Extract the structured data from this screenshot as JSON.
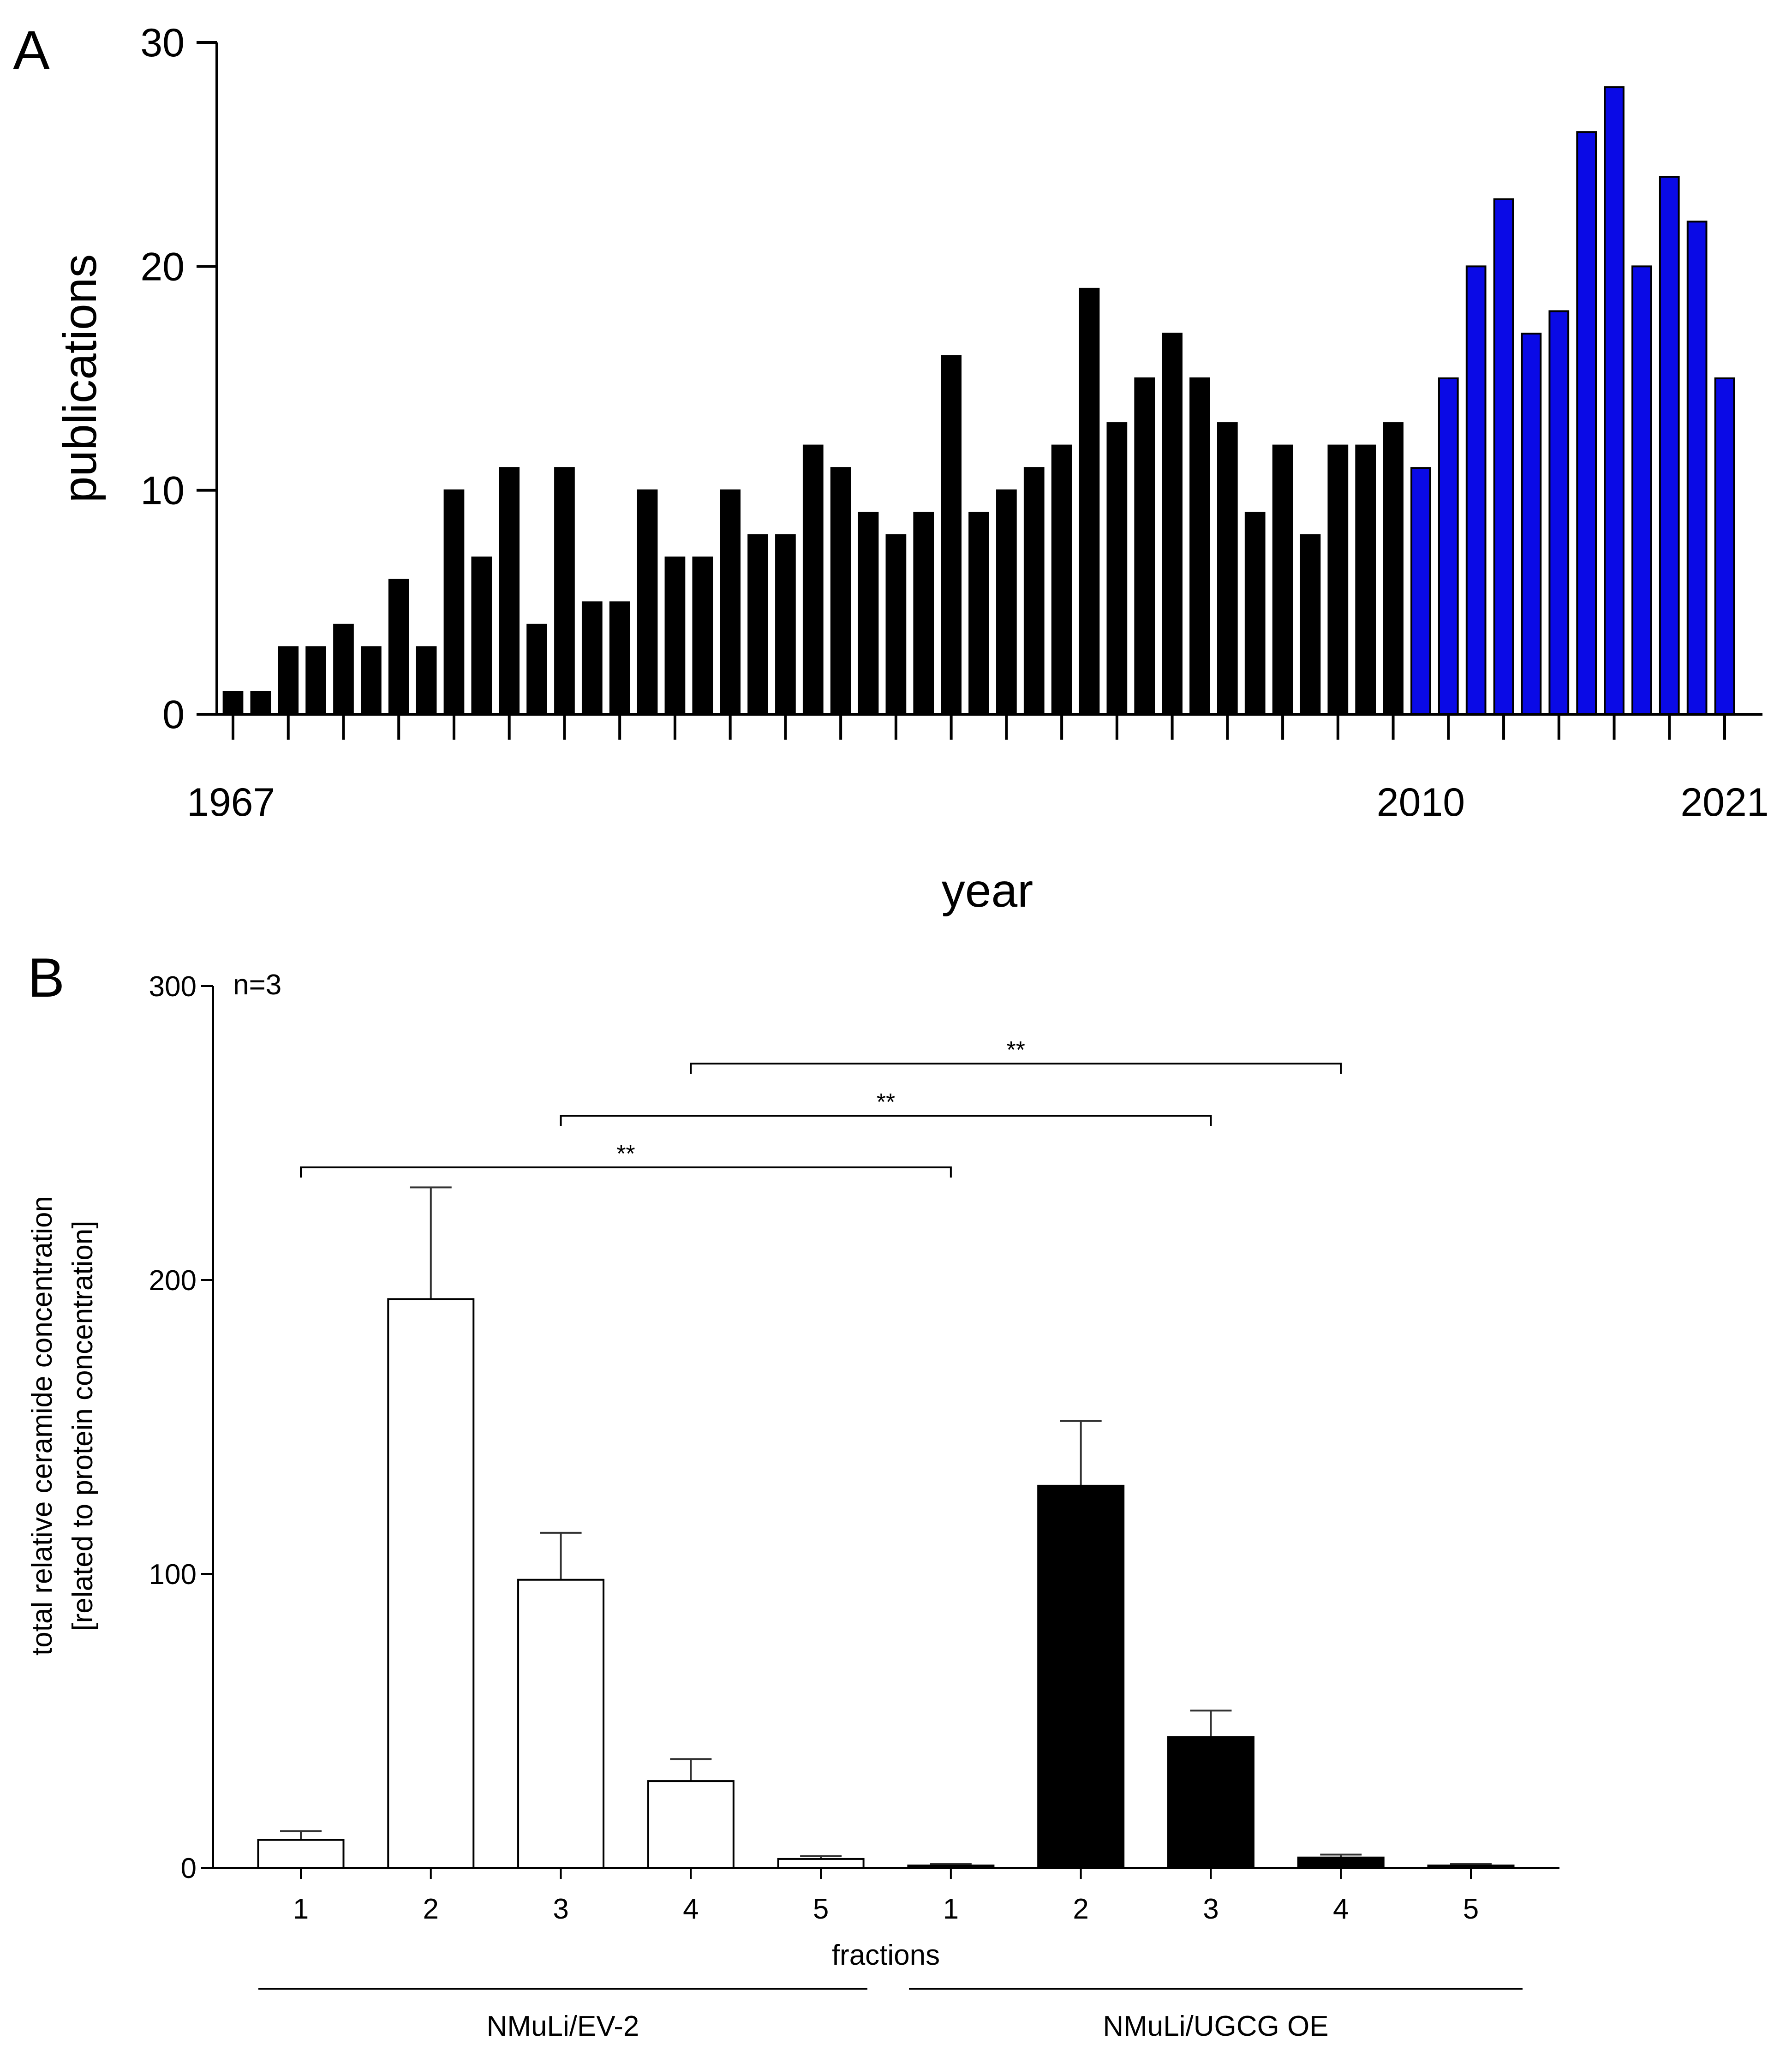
{
  "panel_a_label": "A",
  "panel_b_label": "B",
  "chart_data": [
    {
      "type": "bar",
      "panel": "A",
      "title": "",
      "xlabel": "year",
      "ylabel": "publications",
      "ylim": [
        0,
        30
      ],
      "yticks": [
        0,
        10,
        20,
        30
      ],
      "x": [
        1967,
        1968,
        1969,
        1970,
        1971,
        1972,
        1973,
        1974,
        1975,
        1976,
        1977,
        1978,
        1979,
        1980,
        1981,
        1982,
        1983,
        1984,
        1985,
        1986,
        1987,
        1988,
        1989,
        1990,
        1991,
        1992,
        1993,
        1994,
        1995,
        1996,
        1997,
        1998,
        1999,
        2000,
        2001,
        2002,
        2003,
        2004,
        2005,
        2006,
        2007,
        2008,
        2009,
        2010,
        2011,
        2012,
        2013,
        2014,
        2015,
        2016,
        2017,
        2018,
        2019,
        2020,
        2021
      ],
      "values": [
        1,
        1,
        3,
        3,
        4,
        3,
        6,
        3,
        10,
        7,
        11,
        4,
        11,
        5,
        5,
        10,
        7,
        7,
        10,
        8,
        8,
        12,
        11,
        9,
        8,
        9,
        16,
        9,
        10,
        11,
        12,
        19,
        13,
        15,
        17,
        15,
        13,
        9,
        12,
        8,
        12,
        12,
        13,
        11,
        15,
        20,
        23,
        17,
        18,
        26,
        28,
        20,
        24,
        22,
        15
      ],
      "highlight_from_index": 43,
      "colors": {
        "default": "#000000",
        "highlight": "#0a0ae6"
      },
      "xtick_labels": [
        {
          "index": 0,
          "label": "1967"
        },
        {
          "index": 43,
          "label": "2010"
        },
        {
          "index": 54,
          "label": "2021"
        }
      ],
      "grid": false
    },
    {
      "type": "bar",
      "panel": "B",
      "title": "",
      "annotation": "n=3",
      "xlabel": "fractions",
      "ylabel": [
        "total relative ceramide concentration",
        "[related to protein concentration]"
      ],
      "ylim": [
        0,
        300
      ],
      "yticks": [
        0,
        100,
        200,
        300
      ],
      "categories": [
        "1",
        "2",
        "3",
        "4",
        "5",
        "1",
        "2",
        "3",
        "4",
        "5"
      ],
      "groups": [
        {
          "name": "NMuLi/EV-2",
          "fill": "#ffffff",
          "values": [
            9.5,
            193.5,
            98,
            29.5,
            3
          ],
          "errors": [
            3,
            38,
            16,
            7.5,
            1
          ]
        },
        {
          "name": "NMuLi/UGCG OE",
          "fill": "#000000",
          "values": [
            0.8,
            130,
            44.5,
            3.5,
            0.8
          ],
          "errors": [
            0.5,
            22,
            9,
            1,
            0.6
          ]
        }
      ],
      "significance": [
        {
          "from_index": 0,
          "to_index": 5,
          "label": "**"
        },
        {
          "from_index": 2,
          "to_index": 7,
          "label": "**"
        },
        {
          "from_index": 3,
          "to_index": 8,
          "label": "**"
        }
      ],
      "grid": false
    }
  ]
}
